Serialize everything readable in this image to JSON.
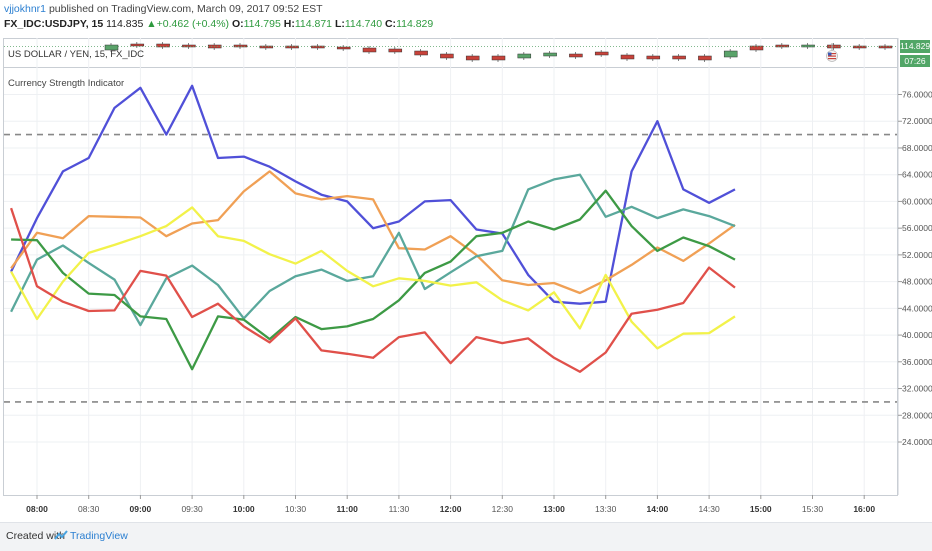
{
  "header": {
    "author": "vjjokhnr1",
    "published": " published on TradingView.com, March 09, 2017 09:52 EST",
    "symbol": "FX_IDC:USDJPY, 15",
    "price": "114.835",
    "change": "+0.462 (+0.4%)",
    "open_label": "O:",
    "open": "114.795",
    "high_label": "H:",
    "high": "114.871",
    "low_label": "L:",
    "low": "114.740",
    "close_label": "C:",
    "close": "114.829"
  },
  "price_pane": {
    "title": "US DOLLAR / YEN, 15, FX_IDC",
    "last_price": "114.829",
    "countdown": "07:26",
    "candle_up_color": "#5aa36a",
    "candle_down_color": "#c8423a"
  },
  "indicator": {
    "title": "Currency Strength Indicator"
  },
  "footer": {
    "created": "Created with",
    "brand": "TradingView"
  },
  "chart_data": {
    "type": "line",
    "x": [
      "07:45",
      "08:00",
      "08:15",
      "08:30",
      "08:45",
      "09:00",
      "09:15",
      "09:30",
      "09:45",
      "10:00",
      "10:15",
      "10:30",
      "10:45",
      "11:00",
      "11:15",
      "11:30",
      "11:45",
      "12:00",
      "12:15",
      "12:30",
      "12:45",
      "13:00",
      "13:15",
      "13:30",
      "13:45",
      "14:00",
      "14:15",
      "14:30",
      "14:45"
    ],
    "x_ticks": [
      "08:00",
      "08:30",
      "09:00",
      "09:30",
      "10:00",
      "10:30",
      "11:00",
      "11:30",
      "12:00",
      "12:30",
      "13:00",
      "13:30",
      "14:00",
      "14:30",
      "15:00",
      "15:30",
      "16:00"
    ],
    "x_ticks_bold": [
      "08:00",
      "09:00",
      "10:00",
      "11:00",
      "12:00",
      "13:00",
      "14:00",
      "15:00",
      "16:00"
    ],
    "x_range": [
      "07:45",
      "16:15"
    ],
    "ylim": [
      22,
      79
    ],
    "y_ticks": [
      "76.0000",
      "72.0000",
      "68.0000",
      "64.0000",
      "60.0000",
      "56.0000",
      "52.0000",
      "48.0000",
      "44.0000",
      "40.0000",
      "36.0000",
      "32.0000",
      "28.0000",
      "24.0000"
    ],
    "reference_lines": [
      70,
      30
    ],
    "grid": true,
    "series": [
      {
        "color": "#5050d8",
        "values": [
          49.5,
          57.5,
          64.5,
          66.5,
          74,
          77,
          70,
          77.3,
          66.5,
          66.7,
          65.2,
          63,
          61,
          60,
          56,
          57,
          60,
          60.2,
          55.8,
          55.2,
          49,
          45,
          44.7,
          45,
          64.5,
          72,
          61.8,
          59.8,
          61.8
        ]
      },
      {
        "color": "#f0a055",
        "values": [
          50,
          55.3,
          54.5,
          57.8,
          57.7,
          57.6,
          54.8,
          56.7,
          57.2,
          61.5,
          64.5,
          61.2,
          60.3,
          60.8,
          60.3,
          53,
          52.8,
          54.8,
          52,
          48.2,
          47.5,
          47.8,
          46.3,
          48.2,
          50.5,
          53.1,
          51.1,
          53.7,
          56.5
        ]
      },
      {
        "color": "#5aa89c",
        "values": [
          43.5,
          51.3,
          53.4,
          50.8,
          48.3,
          41.5,
          48.5,
          50.4,
          47.5,
          42.5,
          46.6,
          48.8,
          49.8,
          48.1,
          48.8,
          55.3,
          46.9,
          49.4,
          51.8,
          52.6,
          61.8,
          63.3,
          64,
          57.7,
          59.2,
          57.5,
          58.8,
          57.8,
          56.3
        ]
      },
      {
        "color": "#3d9a45",
        "values": [
          54.3,
          54.2,
          49.3,
          46.2,
          46,
          42.8,
          42.4,
          34.9,
          42.8,
          42.3,
          39.4,
          42.7,
          40.9,
          41.3,
          42.4,
          45.2,
          49.3,
          51,
          54.8,
          55.3,
          57,
          55.8,
          57.3,
          61.6,
          56.3,
          52.6,
          54.6,
          53.3,
          51.3
        ]
      },
      {
        "color": "#f2f24a",
        "values": [
          49.5,
          42.4,
          48,
          52.3,
          53.5,
          54.8,
          56.3,
          59.1,
          54.8,
          54.1,
          52.1,
          50.7,
          52.6,
          49.6,
          47.3,
          48.5,
          48.1,
          47.4,
          47.9,
          45.2,
          43.7,
          46.4,
          41,
          49,
          42,
          38,
          40.2,
          40.3,
          42.8
        ]
      },
      {
        "color": "#e0504a",
        "values": [
          59,
          47.3,
          45,
          43.6,
          43.7,
          49.6,
          48.9,
          42.7,
          44.7,
          41.3,
          38.9,
          42.5,
          37.7,
          37.2,
          36.6,
          39.7,
          40.4,
          35.8,
          39.7,
          38.8,
          39.5,
          36.6,
          34.5,
          37.4,
          43.2,
          43.8,
          44.8,
          50.1,
          47.1
        ]
      }
    ]
  }
}
